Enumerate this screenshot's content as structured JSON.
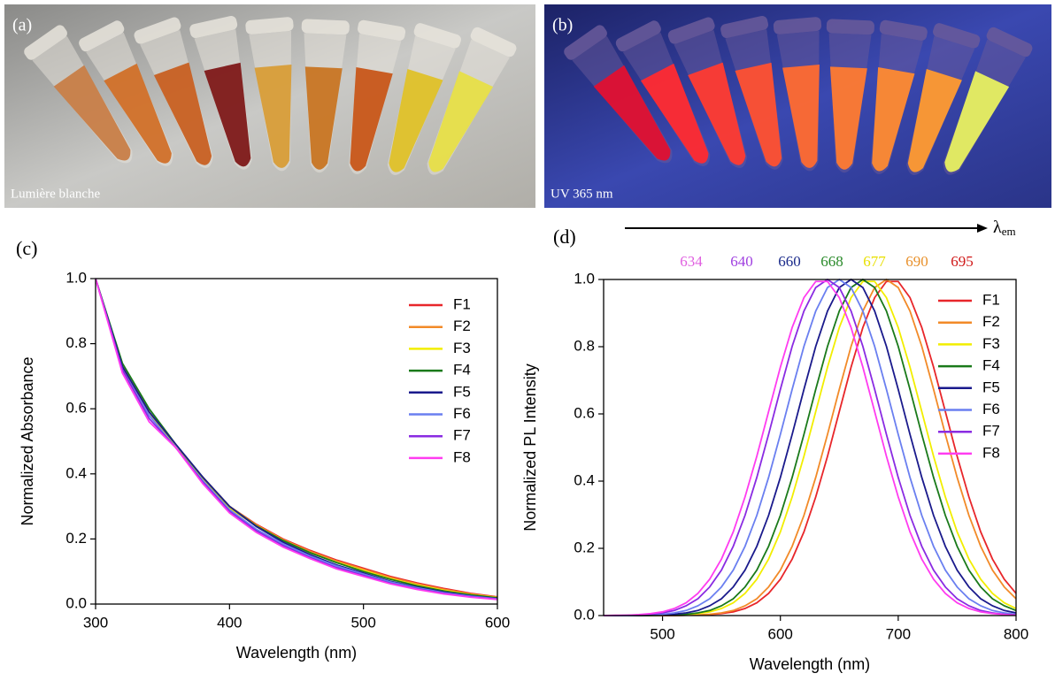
{
  "photos": [
    {
      "label": "(a)",
      "caption": "Lumière blanche"
    },
    {
      "label": "(b)",
      "caption": "UV 365 nm"
    }
  ],
  "chart_data": [
    {
      "type": "line",
      "panel_label": "(c)",
      "x_label": "Wavelength (nm)",
      "y_label": "Normalized Absorbance",
      "x": [
        300,
        320,
        340,
        360,
        380,
        400,
        420,
        440,
        460,
        480,
        500,
        520,
        540,
        560,
        580,
        600
      ],
      "xlim": [
        300,
        600
      ],
      "xticks": [
        300,
        400,
        500,
        600
      ],
      "ylim": [
        0,
        1
      ],
      "yticks": [
        {
          "value": 0,
          "label": "0.0"
        },
        0.2,
        0.4,
        0.6,
        0.8,
        {
          "value": 1,
          "label": "1.0"
        }
      ],
      "legend": "upper right",
      "series": [
        {
          "name": "F1",
          "color": "#e8262a",
          "values": [
            1.0,
            0.73,
            0.59,
            0.48,
            0.39,
            0.3,
            0.245,
            0.2,
            0.165,
            0.135,
            0.11,
            0.085,
            0.065,
            0.048,
            0.033,
            0.022
          ]
        },
        {
          "name": "F2",
          "color": "#f28a28",
          "values": [
            1.0,
            0.73,
            0.59,
            0.48,
            0.39,
            0.3,
            0.243,
            0.198,
            0.162,
            0.132,
            0.107,
            0.082,
            0.062,
            0.045,
            0.031,
            0.021
          ]
        },
        {
          "name": "F3",
          "color": "#f2ee00",
          "values": [
            1.0,
            0.73,
            0.59,
            0.48,
            0.385,
            0.295,
            0.24,
            0.195,
            0.158,
            0.128,
            0.103,
            0.078,
            0.058,
            0.042,
            0.029,
            0.02
          ]
        },
        {
          "name": "F4",
          "color": "#1a7a1a",
          "values": [
            1.0,
            0.74,
            0.6,
            0.49,
            0.39,
            0.3,
            0.24,
            0.195,
            0.158,
            0.127,
            0.1,
            0.076,
            0.056,
            0.04,
            0.028,
            0.019
          ]
        },
        {
          "name": "F5",
          "color": "#1a1a8c",
          "values": [
            1.0,
            0.73,
            0.59,
            0.49,
            0.39,
            0.3,
            0.238,
            0.19,
            0.152,
            0.12,
            0.095,
            0.07,
            0.052,
            0.037,
            0.025,
            0.017
          ]
        },
        {
          "name": "F6",
          "color": "#6a7ff0",
          "values": [
            1.0,
            0.72,
            0.58,
            0.48,
            0.38,
            0.29,
            0.23,
            0.185,
            0.148,
            0.117,
            0.092,
            0.068,
            0.05,
            0.035,
            0.024,
            0.016
          ]
        },
        {
          "name": "F7",
          "color": "#8a2be2",
          "values": [
            1.0,
            0.72,
            0.57,
            0.48,
            0.375,
            0.285,
            0.225,
            0.18,
            0.143,
            0.112,
            0.088,
            0.064,
            0.047,
            0.033,
            0.022,
            0.015
          ]
        },
        {
          "name": "F8",
          "color": "#ff3cf0",
          "values": [
            1.0,
            0.71,
            0.56,
            0.48,
            0.37,
            0.28,
            0.22,
            0.175,
            0.14,
            0.108,
            0.085,
            0.062,
            0.045,
            0.031,
            0.021,
            0.014
          ]
        }
      ]
    },
    {
      "type": "line",
      "panel_label": "(d)",
      "x_label": "Wavelength (nm)",
      "y_label": "Normalized PL Intensity",
      "arrow_label": {
        "symbol": "λ",
        "subscript": "em"
      },
      "annotations": [
        {
          "value": 634,
          "color": "#e060e0"
        },
        {
          "value": 640,
          "color": "#a040e0"
        },
        {
          "value": 660,
          "color": "#1a2a8a"
        },
        {
          "value": 668,
          "color": "#2a8a2a"
        },
        {
          "value": 677,
          "color": "#e8e000"
        },
        {
          "value": 690,
          "color": "#e8902a"
        },
        {
          "value": 695,
          "color": "#d01818"
        }
      ],
      "x": [
        450,
        460,
        470,
        480,
        490,
        500,
        510,
        520,
        530,
        540,
        550,
        560,
        570,
        580,
        590,
        600,
        610,
        620,
        630,
        640,
        650,
        660,
        670,
        680,
        690,
        700,
        710,
        720,
        730,
        740,
        750,
        760,
        770,
        780,
        790,
        800
      ],
      "xlim": [
        450,
        800
      ],
      "xticks": [
        500,
        600,
        700,
        800
      ],
      "ylim": [
        0,
        1
      ],
      "yticks": [
        {
          "value": 0,
          "label": "0.0"
        },
        0.2,
        0.4,
        0.6,
        0.8,
        {
          "value": 1,
          "label": "1.0"
        }
      ],
      "legend": "upper right",
      "series": [
        {
          "name": "F1",
          "color": "#e8262a",
          "values": [
            0,
            0,
            0,
            0,
            0,
            0,
            0,
            0.001,
            0.001,
            0.003,
            0.006,
            0.011,
            0.021,
            0.038,
            0.066,
            0.108,
            0.168,
            0.249,
            0.353,
            0.474,
            0.607,
            0.739,
            0.857,
            0.946,
            0.994,
            0.994,
            0.946,
            0.857,
            0.739,
            0.607,
            0.474,
            0.353,
            0.249,
            0.168,
            0.108,
            0.066
          ]
        },
        {
          "name": "F2",
          "color": "#f28a28",
          "values": [
            0,
            0,
            0,
            0,
            0,
            0,
            0,
            0.001,
            0.002,
            0.004,
            0.008,
            0.015,
            0.029,
            0.05,
            0.085,
            0.135,
            0.206,
            0.298,
            0.411,
            0.539,
            0.673,
            0.801,
            0.906,
            0.976,
            1,
            0.976,
            0.906,
            0.801,
            0.673,
            0.539,
            0.411,
            0.298,
            0.206,
            0.135,
            0.085,
            0.05
          ]
        },
        {
          "name": "F3",
          "color": "#f2ee00",
          "values": [
            0,
            0,
            0,
            0,
            0,
            0.001,
            0.001,
            0.003,
            0.006,
            0.011,
            0.021,
            0.038,
            0.066,
            0.108,
            0.168,
            0.249,
            0.353,
            0.474,
            0.607,
            0.739,
            0.857,
            0.946,
            0.994,
            0.994,
            0.946,
            0.857,
            0.739,
            0.607,
            0.474,
            0.353,
            0.249,
            0.168,
            0.108,
            0.066,
            0.038,
            0.021
          ]
        },
        {
          "name": "F4",
          "color": "#1a7a1a",
          "values": [
            0,
            0,
            0,
            0,
            0,
            0.001,
            0.002,
            0.004,
            0.008,
            0.015,
            0.029,
            0.05,
            0.085,
            0.135,
            0.206,
            0.298,
            0.411,
            0.539,
            0.673,
            0.801,
            0.906,
            0.976,
            1,
            0.976,
            0.906,
            0.801,
            0.673,
            0.539,
            0.411,
            0.298,
            0.206,
            0.135,
            0.085,
            0.05,
            0.029,
            0.015
          ]
        },
        {
          "name": "F5",
          "color": "#1a1a8c",
          "values": [
            0,
            0,
            0,
            0,
            0.001,
            0.002,
            0.004,
            0.008,
            0.015,
            0.029,
            0.05,
            0.085,
            0.135,
            0.206,
            0.298,
            0.411,
            0.539,
            0.673,
            0.801,
            0.906,
            0.976,
            1,
            0.976,
            0.906,
            0.801,
            0.673,
            0.539,
            0.411,
            0.298,
            0.206,
            0.135,
            0.085,
            0.05,
            0.029,
            0.015,
            0.008
          ]
        },
        {
          "name": "F6",
          "color": "#6a7ff0",
          "values": [
            0,
            0,
            0,
            0.001,
            0.002,
            0.004,
            0.008,
            0.015,
            0.029,
            0.05,
            0.085,
            0.135,
            0.206,
            0.298,
            0.411,
            0.539,
            0.673,
            0.801,
            0.906,
            0.976,
            1,
            0.976,
            0.906,
            0.801,
            0.673,
            0.539,
            0.411,
            0.298,
            0.206,
            0.135,
            0.085,
            0.05,
            0.029,
            0.015,
            0.008,
            0.004
          ]
        },
        {
          "name": "F7",
          "color": "#8a2be2",
          "values": [
            0,
            0,
            0.001,
            0.002,
            0.004,
            0.008,
            0.015,
            0.029,
            0.05,
            0.085,
            0.135,
            0.206,
            0.298,
            0.411,
            0.539,
            0.673,
            0.801,
            0.906,
            0.976,
            1,
            0.976,
            0.906,
            0.801,
            0.673,
            0.539,
            0.411,
            0.298,
            0.206,
            0.135,
            0.085,
            0.05,
            0.029,
            0.015,
            0.008,
            0.004,
            0.002
          ]
        },
        {
          "name": "F8",
          "color": "#ff3cf0",
          "values": [
            0,
            0.001,
            0.001,
            0.003,
            0.006,
            0.011,
            0.021,
            0.038,
            0.066,
            0.108,
            0.168,
            0.249,
            0.353,
            0.474,
            0.607,
            0.739,
            0.857,
            0.946,
            0.994,
            0.994,
            0.946,
            0.857,
            0.739,
            0.607,
            0.474,
            0.353,
            0.249,
            0.168,
            0.108,
            0.066,
            0.038,
            0.021,
            0.011,
            0.006,
            0.003,
            0.001
          ]
        }
      ]
    }
  ]
}
